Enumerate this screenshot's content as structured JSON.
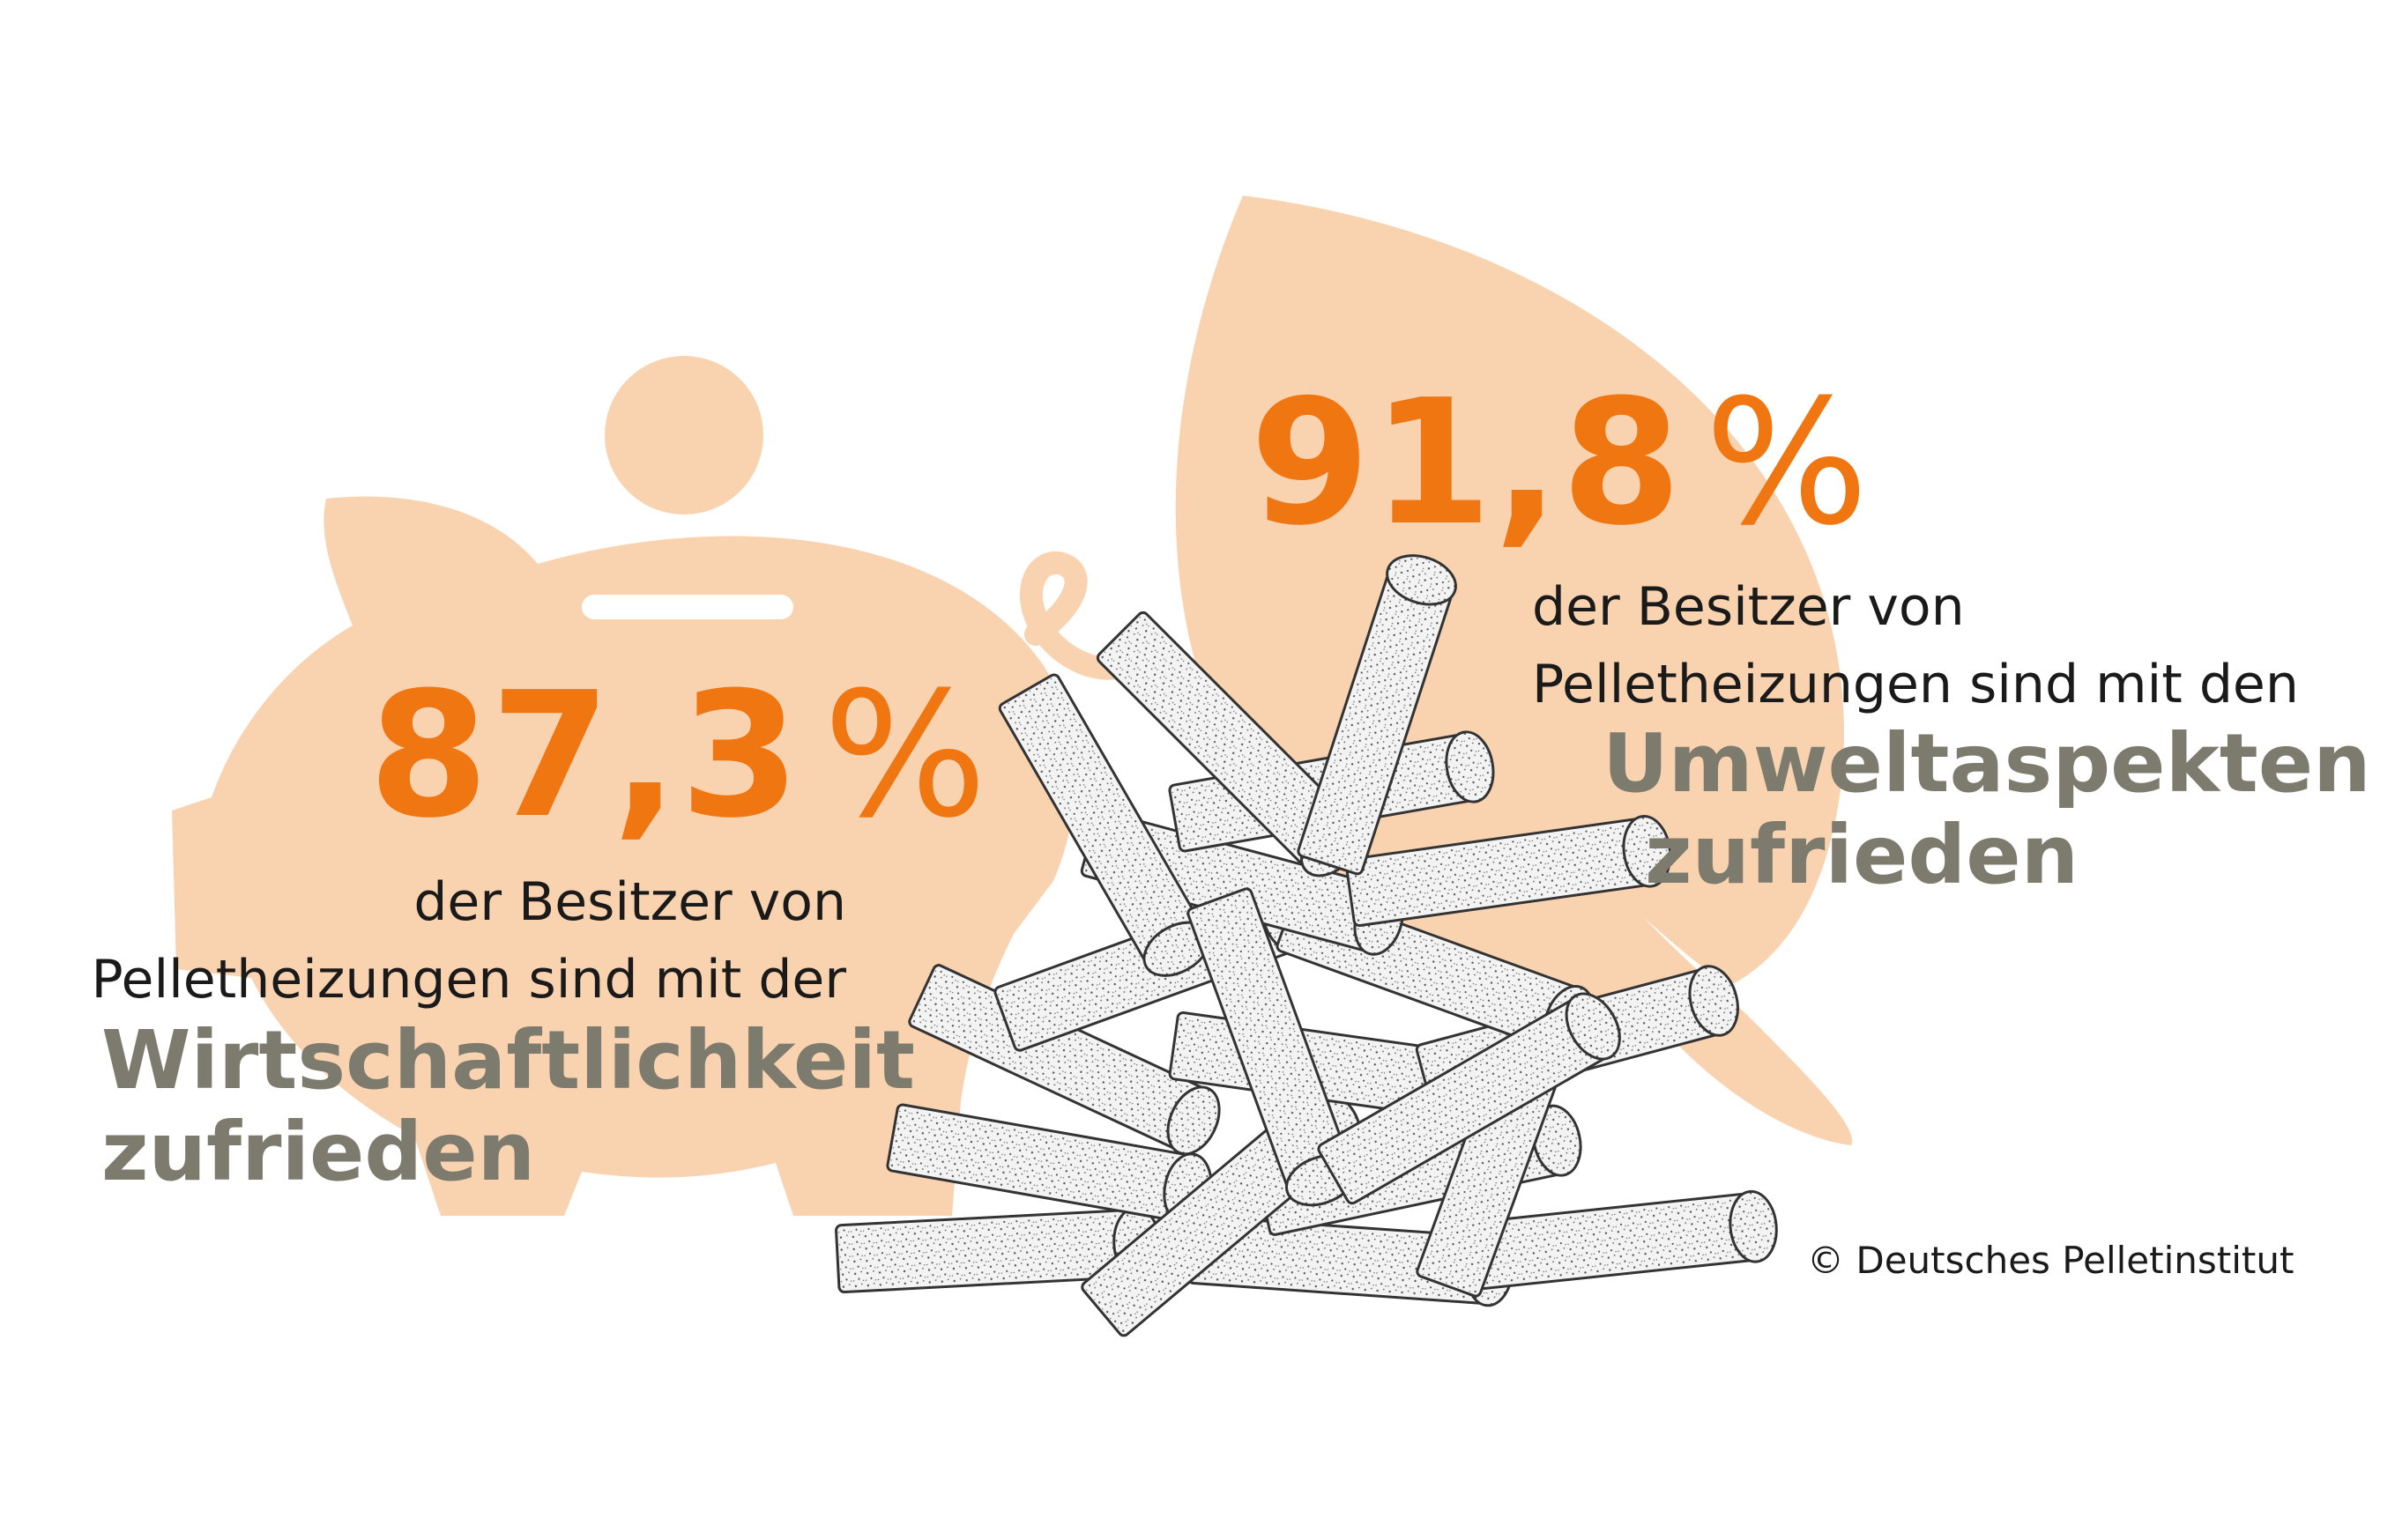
{
  "colors": {
    "background": "#ffffff",
    "accent_orange": "#ef7610",
    "shape_peach": "#f9d3b0",
    "emphasis_gray": "#7d7a6e",
    "text": "#1a1a1a",
    "pellet_fill": "#f2f2f2",
    "pellet_stroke": "#333333"
  },
  "illustrations": [
    "piggy-bank-icon",
    "leaf-icon",
    "wood-pellets-icon"
  ],
  "stat_left": {
    "number": "87,3",
    "percent_sign": "%",
    "line1": "der Besitzer von",
    "line2": "Pelletheizungen sind mit der",
    "emphasis1": "Wirtschaftlichkeit",
    "emphasis2": "zufrieden"
  },
  "stat_right": {
    "number": "91,8",
    "percent_sign": "%",
    "line1": "der Besitzer von",
    "line2": "Pelletheizungen sind mit den",
    "emphasis1": "Umweltaspekten",
    "emphasis2": "zufrieden"
  },
  "credit": "© Deutsches Pelletinstitut"
}
